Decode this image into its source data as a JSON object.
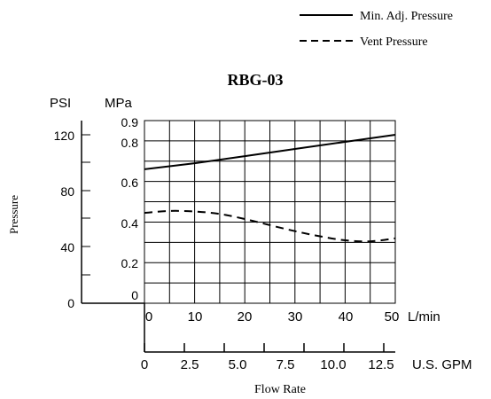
{
  "chart_data": {
    "type": "line",
    "title": "RBG-03",
    "xlabel": "Flow Rate",
    "ylabel": "Pressure",
    "x_axis_primary": {
      "unit": "L/min",
      "ticks": [
        "0",
        "10",
        "20",
        "30",
        "40",
        "50"
      ],
      "range": [
        0,
        50
      ]
    },
    "x_axis_secondary": {
      "unit": "U.S. GPM",
      "ticks": [
        "0",
        "2.5",
        "5.0",
        "7.5",
        "10.0",
        "12.5"
      ]
    },
    "y_axis_left": {
      "unit": "PSI",
      "ticks": [
        "0",
        "40",
        "80",
        "120"
      ]
    },
    "y_axis_right": {
      "unit": "MPa",
      "ticks": [
        "0",
        "0.2",
        "0.4",
        "0.6",
        "0.8",
        "0.9"
      ],
      "range": [
        0,
        0.9
      ]
    },
    "grid": true,
    "legend_position": "top-right",
    "series": [
      {
        "name": "Min. Adj. Pressure",
        "style": "solid",
        "x": [
          0,
          10,
          20,
          30,
          40,
          50
        ],
        "y": [
          0.66,
          0.69,
          0.725,
          0.76,
          0.795,
          0.83
        ]
      },
      {
        "name": "Vent Pressure",
        "style": "dashed",
        "x": [
          0,
          5,
          10,
          15,
          20,
          25,
          30,
          35,
          40,
          45,
          50
        ],
        "y": [
          0.445,
          0.455,
          0.452,
          0.44,
          0.415,
          0.385,
          0.355,
          0.33,
          0.31,
          0.305,
          0.32
        ]
      }
    ],
    "colors": {
      "line": "#000000",
      "grid": "#000000",
      "background": "#ffffff"
    }
  }
}
